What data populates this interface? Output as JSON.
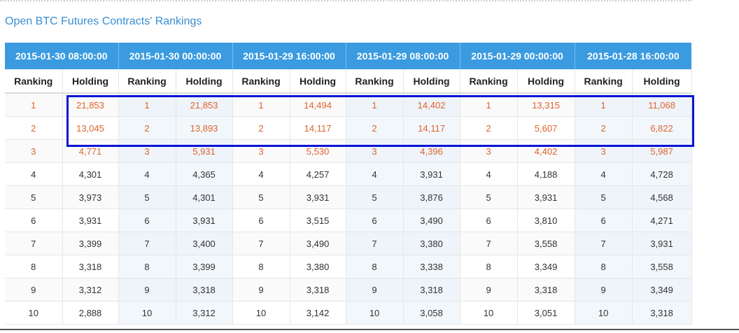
{
  "page": {
    "title": "Open BTC Futures Contracts' Rankings"
  },
  "table": {
    "sub_headers": [
      "Ranking",
      "Holding"
    ],
    "columns": [
      {
        "date": "2015-01-30 08:00:00",
        "rows": [
          [
            "1",
            "21,853"
          ],
          [
            "2",
            "13,045"
          ],
          [
            "3",
            "4,771"
          ],
          [
            "4",
            "4,301"
          ],
          [
            "5",
            "3,973"
          ],
          [
            "6",
            "3,931"
          ],
          [
            "7",
            "3,399"
          ],
          [
            "8",
            "3,318"
          ],
          [
            "9",
            "3,312"
          ],
          [
            "10",
            "2,888"
          ]
        ]
      },
      {
        "date": "2015-01-30 00:00:00",
        "rows": [
          [
            "1",
            "21,853"
          ],
          [
            "2",
            "13,893"
          ],
          [
            "3",
            "5,931"
          ],
          [
            "4",
            "4,365"
          ],
          [
            "5",
            "4,301"
          ],
          [
            "6",
            "3,931"
          ],
          [
            "7",
            "3,400"
          ],
          [
            "8",
            "3,399"
          ],
          [
            "9",
            "3,318"
          ],
          [
            "10",
            "3,312"
          ]
        ]
      },
      {
        "date": "2015-01-29 16:00:00",
        "rows": [
          [
            "1",
            "14,494"
          ],
          [
            "2",
            "14,117"
          ],
          [
            "3",
            "5,530"
          ],
          [
            "4",
            "4,257"
          ],
          [
            "5",
            "3,931"
          ],
          [
            "6",
            "3,515"
          ],
          [
            "7",
            "3,490"
          ],
          [
            "8",
            "3,380"
          ],
          [
            "9",
            "3,318"
          ],
          [
            "10",
            "3,142"
          ]
        ]
      },
      {
        "date": "2015-01-29 08:00:00",
        "rows": [
          [
            "1",
            "14,402"
          ],
          [
            "2",
            "14,117"
          ],
          [
            "3",
            "4,396"
          ],
          [
            "4",
            "3,931"
          ],
          [
            "5",
            "3,876"
          ],
          [
            "6",
            "3,490"
          ],
          [
            "7",
            "3,380"
          ],
          [
            "8",
            "3,338"
          ],
          [
            "9",
            "3,318"
          ],
          [
            "10",
            "3,058"
          ]
        ]
      },
      {
        "date": "2015-01-29 00:00:00",
        "rows": [
          [
            "1",
            "13,315"
          ],
          [
            "2",
            "5,607"
          ],
          [
            "3",
            "4,402"
          ],
          [
            "4",
            "4,188"
          ],
          [
            "5",
            "3,931"
          ],
          [
            "6",
            "3,810"
          ],
          [
            "7",
            "3,558"
          ],
          [
            "8",
            "3,349"
          ],
          [
            "9",
            "3,318"
          ],
          [
            "10",
            "3,051"
          ]
        ]
      },
      {
        "date": "2015-01-28 16:00:00",
        "rows": [
          [
            "1",
            "11,068"
          ],
          [
            "2",
            "6,822"
          ],
          [
            "3",
            "5,987"
          ],
          [
            "4",
            "4,728"
          ],
          [
            "5",
            "4,568"
          ],
          [
            "6",
            "4,271"
          ],
          [
            "7",
            "3,931"
          ],
          [
            "8",
            "3,558"
          ],
          [
            "9",
            "3,349"
          ],
          [
            "10",
            "3,318"
          ]
        ]
      }
    ],
    "highlight_rows": [
      0,
      1,
      2
    ]
  },
  "colors": {
    "header_bg": "#3a9be0",
    "title": "#3a8fd1",
    "highlight_text": "#e0622d",
    "annotation_box": "#0a14d6"
  }
}
